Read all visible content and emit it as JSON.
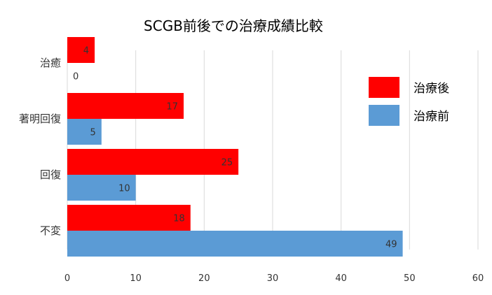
{
  "chart_data": {
    "type": "bar",
    "orientation": "horizontal",
    "title": "SCGB前後での治療成績比較",
    "categories": [
      "治癒",
      "著明回復",
      "回復",
      "不変"
    ],
    "series": [
      {
        "name": "治療後",
        "values": [
          4,
          17,
          25,
          18
        ],
        "color": "#ff0000"
      },
      {
        "name": "治療前",
        "values": [
          0,
          5,
          10,
          49
        ],
        "color": "#5b9bd5"
      }
    ],
    "xlim": [
      0,
      60
    ],
    "xticks": [
      "0",
      "10",
      "20",
      "30",
      "40",
      "50",
      "60"
    ],
    "grid": "vertical",
    "legend": "right",
    "xlabel": "",
    "ylabel": ""
  }
}
